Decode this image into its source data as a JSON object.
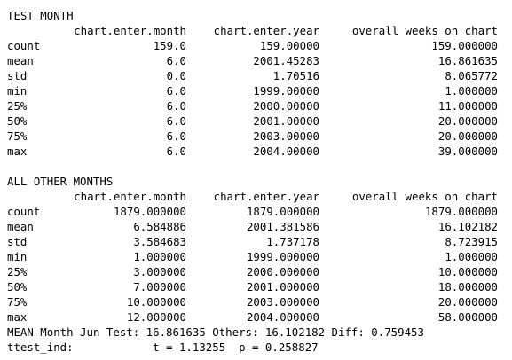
{
  "test_section": {
    "title": "TEST MONTH",
    "headers": [
      "chart.enter.month",
      "chart.enter.year",
      "overall weeks on chart"
    ],
    "rows": [
      {
        "label": "count",
        "values": [
          "159.0",
          "159.00000",
          "159.000000"
        ]
      },
      {
        "label": "mean",
        "values": [
          "6.0",
          "2001.45283",
          "16.861635"
        ]
      },
      {
        "label": "std",
        "values": [
          "0.0",
          "1.70516",
          "8.065772"
        ]
      },
      {
        "label": "min",
        "values": [
          "6.0",
          "1999.00000",
          "1.000000"
        ]
      },
      {
        "label": "25%",
        "values": [
          "6.0",
          "2000.00000",
          "11.000000"
        ]
      },
      {
        "label": "50%",
        "values": [
          "6.0",
          "2001.00000",
          "20.000000"
        ]
      },
      {
        "label": "75%",
        "values": [
          "6.0",
          "2003.00000",
          "20.000000"
        ]
      },
      {
        "label": "max",
        "values": [
          "6.0",
          "2004.00000",
          "39.000000"
        ]
      }
    ]
  },
  "others_section": {
    "title": "ALL OTHER MONTHS",
    "headers": [
      "chart.enter.month",
      "chart.enter.year",
      "overall weeks on chart"
    ],
    "rows": [
      {
        "label": "count",
        "values": [
          "1879.000000",
          "1879.000000",
          "1879.000000"
        ]
      },
      {
        "label": "mean",
        "values": [
          "6.584886",
          "2001.381586",
          "16.102182"
        ]
      },
      {
        "label": "std",
        "values": [
          "3.584683",
          "1.737178",
          "8.723915"
        ]
      },
      {
        "label": "min",
        "values": [
          "1.000000",
          "1999.000000",
          "1.000000"
        ]
      },
      {
        "label": "25%",
        "values": [
          "3.000000",
          "2000.000000",
          "10.000000"
        ]
      },
      {
        "label": "50%",
        "values": [
          "7.000000",
          "2001.000000",
          "18.000000"
        ]
      },
      {
        "label": "75%",
        "values": [
          "10.000000",
          "2003.000000",
          "20.000000"
        ]
      },
      {
        "label": "max",
        "values": [
          "12.000000",
          "2004.000000",
          "58.000000"
        ]
      }
    ]
  },
  "summary": {
    "mean_line": "MEAN Month Jun Test: 16.861635 Others: 16.102182 Diff: 0.759453",
    "ttest_line": "ttest_ind:            t = 1.13255  p = 0.258827"
  }
}
